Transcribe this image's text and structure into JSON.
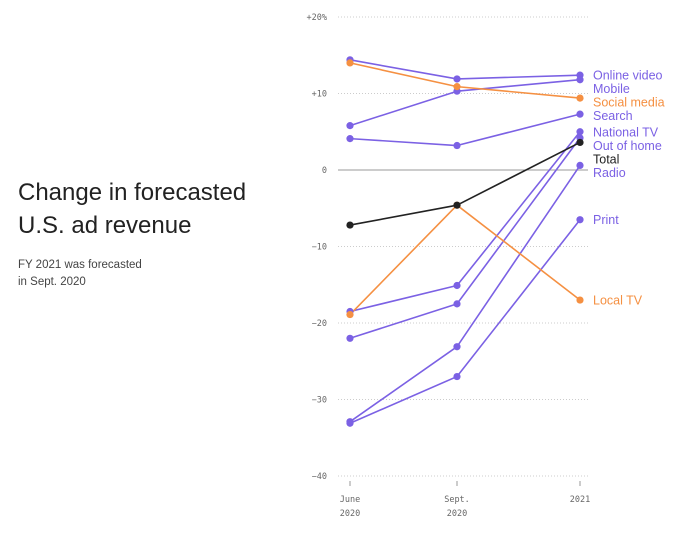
{
  "chart_data": {
    "type": "line",
    "title_lines": [
      "Change in forecasted",
      "U.S. ad revenue"
    ],
    "subtitle_lines": [
      "FY 2021 was forecasted",
      "in Sept. 2020"
    ],
    "x_ticks": [
      {
        "line1": "June",
        "line2": "2020"
      },
      {
        "line1": "Sept.",
        "line2": "2020"
      },
      {
        "line1": "2021",
        "line2": ""
      }
    ],
    "y_ticks": [
      {
        "value": 20,
        "label": "+20%"
      },
      {
        "value": 10,
        "label": "+10"
      },
      {
        "value": 0,
        "label": "0"
      },
      {
        "value": -10,
        "label": "−10"
      },
      {
        "value": -20,
        "label": "−20"
      },
      {
        "value": -30,
        "label": "−30"
      },
      {
        "value": -40,
        "label": "−40"
      }
    ],
    "ylim": [
      -40,
      20
    ],
    "grid": "horizontal-dotted",
    "colors": {
      "purple": "#7b61e4",
      "orange": "#f59042",
      "black": "#222222"
    },
    "series": [
      {
        "name": "Online video",
        "values": [
          14.4,
          11.9,
          12.4
        ],
        "color": "#7b61e4"
      },
      {
        "name": "Mobile",
        "values": [
          5.8,
          10.3,
          11.8
        ],
        "color": "#7b61e4"
      },
      {
        "name": "Social media",
        "values": [
          14.0,
          10.9,
          9.4
        ],
        "color": "#f59042"
      },
      {
        "name": "Search",
        "values": [
          4.1,
          3.2,
          7.3
        ],
        "color": "#7b61e4"
      },
      {
        "name": "National TV",
        "values": [
          -18.5,
          -15.1,
          5.0
        ],
        "color": "#7b61e4"
      },
      {
        "name": "Out of home",
        "values": [
          -22.0,
          -17.5,
          4.2
        ],
        "color": "#7b61e4"
      },
      {
        "name": "Total",
        "values": [
          -7.2,
          -4.6,
          3.6
        ],
        "color": "#222222"
      },
      {
        "name": "Radio",
        "values": [
          -32.9,
          -23.1,
          0.6
        ],
        "color": "#7b61e4"
      },
      {
        "name": "Print",
        "values": [
          -33.1,
          -27.0,
          -6.5
        ],
        "color": "#7b61e4"
      },
      {
        "name": "Local TV",
        "values": [
          -18.9,
          -4.6,
          -17.0
        ],
        "color": "#f59042"
      }
    ]
  }
}
